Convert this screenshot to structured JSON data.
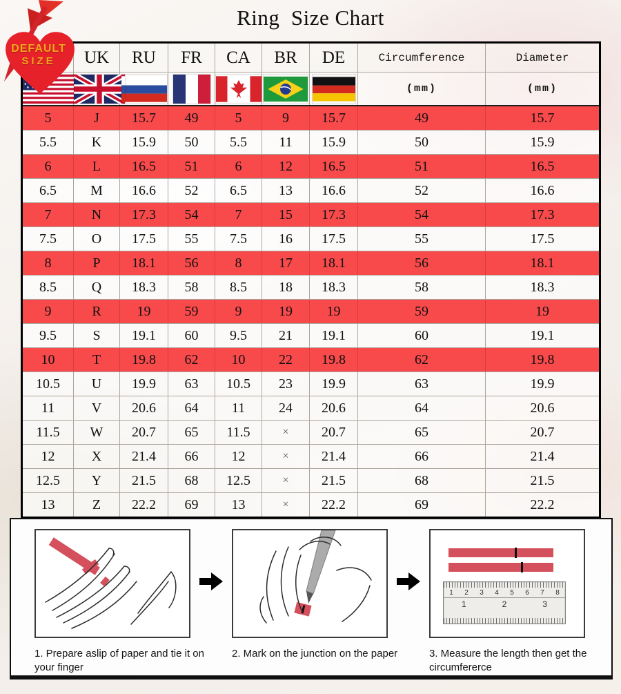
{
  "title": "Ring  Size Chart",
  "badge": {
    "line1": "DEFAULT",
    "line2": "SIZE"
  },
  "chart_data": {
    "type": "table",
    "title": "Ring  Size Chart",
    "columns": [
      {
        "label": "US",
        "flag": "us-flag"
      },
      {
        "label": "UK",
        "flag": "uk-flag"
      },
      {
        "label": "RU",
        "flag": "ru-flag"
      },
      {
        "label": "FR",
        "flag": "fr-flag"
      },
      {
        "label": "CA",
        "flag": "ca-flag"
      },
      {
        "label": "BR",
        "flag": "br-flag"
      },
      {
        "label": "DE",
        "flag": "de-flag"
      },
      {
        "label": "Circumference",
        "sub": "(mm)"
      },
      {
        "label": "Diameter",
        "sub": "(mm)"
      }
    ],
    "column_keys": [
      "us",
      "uk",
      "ru",
      "fr",
      "ca",
      "br",
      "de",
      "circumference",
      "diameter"
    ],
    "highlighted_rows": [
      0,
      2,
      4,
      6,
      8,
      10
    ],
    "rows": [
      [
        "5",
        "J",
        "15.7",
        "49",
        "5",
        "9",
        "15.7",
        "49",
        "15.7"
      ],
      [
        "5.5",
        "K",
        "15.9",
        "50",
        "5.5",
        "11",
        "15.9",
        "50",
        "15.9"
      ],
      [
        "6",
        "L",
        "16.5",
        "51",
        "6",
        "12",
        "16.5",
        "51",
        "16.5"
      ],
      [
        "6.5",
        "M",
        "16.6",
        "52",
        "6.5",
        "13",
        "16.6",
        "52",
        "16.6"
      ],
      [
        "7",
        "N",
        "17.3",
        "54",
        "7",
        "15",
        "17.3",
        "54",
        "17.3"
      ],
      [
        "7.5",
        "O",
        "17.5",
        "55",
        "7.5",
        "16",
        "17.5",
        "55",
        "17.5"
      ],
      [
        "8",
        "P",
        "18.1",
        "56",
        "8",
        "17",
        "18.1",
        "56",
        "18.1"
      ],
      [
        "8.5",
        "Q",
        "18.3",
        "58",
        "8.5",
        "18",
        "18.3",
        "58",
        "18.3"
      ],
      [
        "9",
        "R",
        "19",
        "59",
        "9",
        "19",
        "19",
        "59",
        "19"
      ],
      [
        "9.5",
        "S",
        "19.1",
        "60",
        "9.5",
        "21",
        "19.1",
        "60",
        "19.1"
      ],
      [
        "10",
        "T",
        "19.8",
        "62",
        "10",
        "22",
        "19.8",
        "62",
        "19.8"
      ],
      [
        "10.5",
        "U",
        "19.9",
        "63",
        "10.5",
        "23",
        "19.9",
        "63",
        "19.9"
      ],
      [
        "11",
        "V",
        "20.6",
        "64",
        "11",
        "24",
        "20.6",
        "64",
        "20.6"
      ],
      [
        "11.5",
        "W",
        "20.7",
        "65",
        "11.5",
        "×",
        "20.7",
        "65",
        "20.7"
      ],
      [
        "12",
        "X",
        "21.4",
        "66",
        "12",
        "×",
        "21.4",
        "66",
        "21.4"
      ],
      [
        "12.5",
        "Y",
        "21.5",
        "68",
        "12.5",
        "×",
        "21.5",
        "68",
        "21.5"
      ],
      [
        "13",
        "Z",
        "22.2",
        "69",
        "13",
        "×",
        "22.2",
        "69",
        "22.2"
      ]
    ]
  },
  "instructions": {
    "steps": [
      {
        "caption": "1. Prepare aslip of paper and tie it on your finger",
        "illustration": "hand-with-paper-strip"
      },
      {
        "caption": "2. Mark on the junction on the paper",
        "illustration": "pen-marking-paper-on-finger"
      },
      {
        "caption": "3. Measure the length then get the circumfererce",
        "illustration": "ruler-measuring-strips"
      }
    ],
    "ruler": {
      "top_numbers": [
        "1",
        "2",
        "3",
        "4",
        "5",
        "6",
        "7",
        "8"
      ],
      "bottom_numbers": [
        "1",
        "2",
        "3"
      ]
    }
  },
  "colors": {
    "highlight_red": "#f8494b",
    "heart_red": "#e62129",
    "badge_text_gold": "#f2a71b",
    "strip_red": "#d4505c"
  }
}
